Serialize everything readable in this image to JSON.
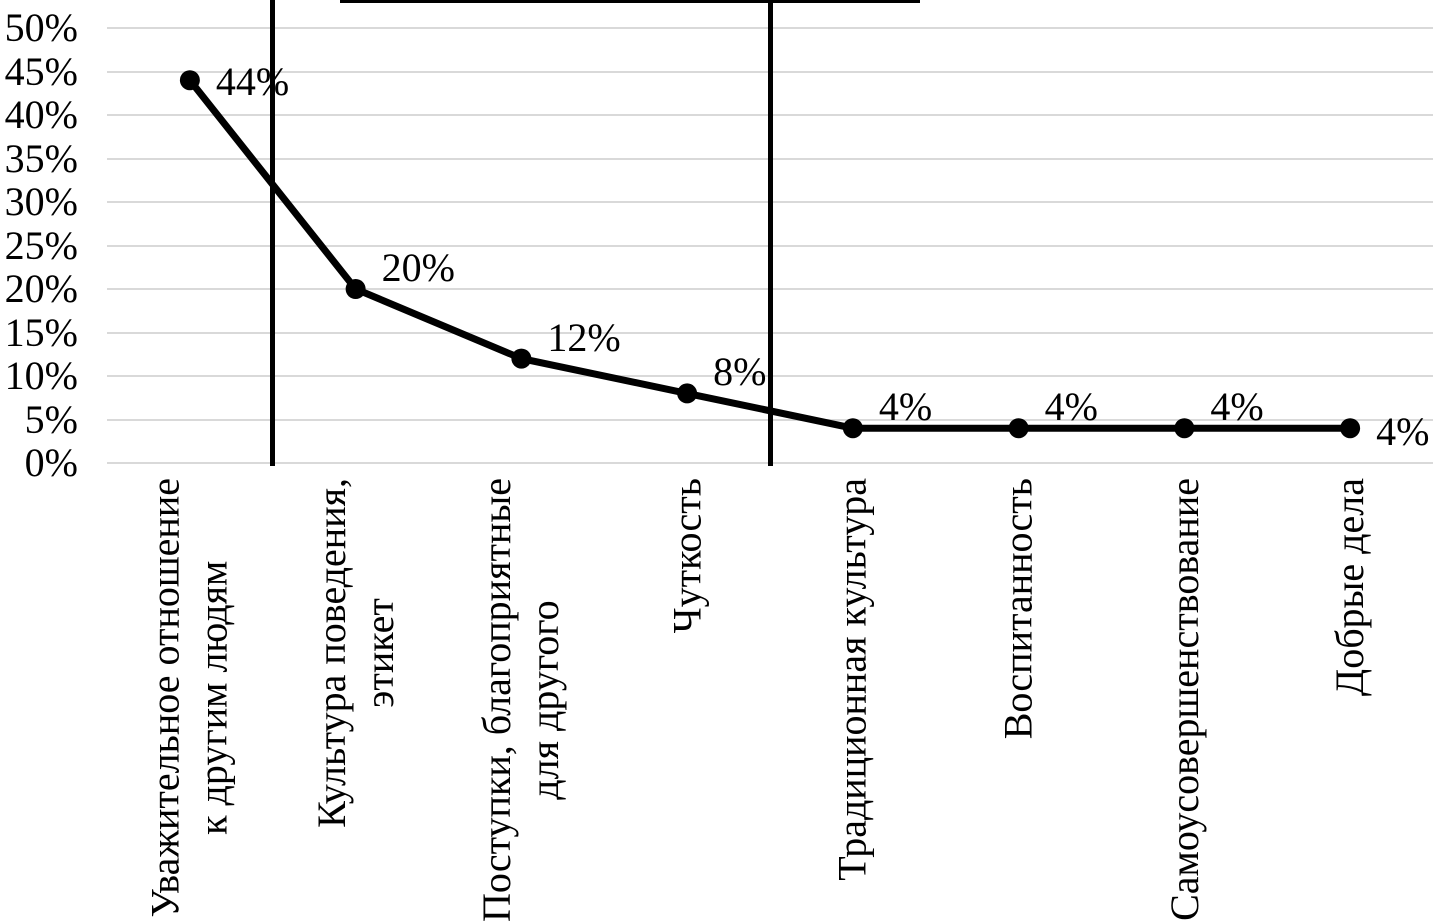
{
  "chart_data": {
    "type": "line",
    "title": "",
    "xlabel": "",
    "ylabel": "",
    "categories": [
      "Уважительное отношение\nк другим людям",
      "Культура поведения,\nэтикет",
      "Поступки, благоприятные\nдля другого",
      "Чуткость",
      "Традиционная культура",
      "Воспитанность",
      "Самоусовершенствование",
      "Добрые дела"
    ],
    "values": [
      44,
      20,
      12,
      8,
      4,
      4,
      4,
      4
    ],
    "value_labels": [
      "44%",
      "20%",
      "12%",
      "8%",
      "4%",
      "4%",
      "4%",
      "4%"
    ],
    "ylim": [
      0,
      50
    ],
    "ytick_step": 5,
    "ytick_labels": [
      "0%",
      "5%",
      "10%",
      "15%",
      "20%",
      "25%",
      "30%",
      "35%",
      "40%",
      "45%",
      "50%"
    ],
    "grid": "horizontal",
    "legend": "none",
    "marker": "filled-circle",
    "group_dividers_after": [
      1,
      4
    ],
    "line_color": "#000000",
    "marker_color": "#000000",
    "grid_color": "#d9d9d9",
    "divider_color": "#000000",
    "text_color": "#000000"
  }
}
